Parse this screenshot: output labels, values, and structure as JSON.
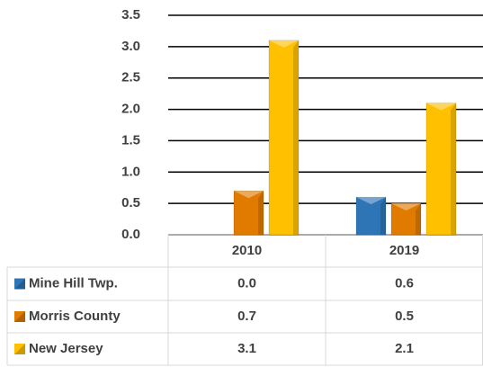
{
  "chart_data": {
    "type": "bar",
    "categories": [
      "2010",
      "2019"
    ],
    "series": [
      {
        "name": "Mine Hill Twp.",
        "color": "#2e75b6",
        "values": [
          0.0,
          0.6
        ],
        "value_labels": [
          "0.0",
          "0.6"
        ]
      },
      {
        "name": "Morris County",
        "color": "#e07b00",
        "values": [
          0.7,
          0.5
        ],
        "value_labels": [
          "0.7",
          "0.5"
        ]
      },
      {
        "name": "New Jersey",
        "color": "#ffc000",
        "values": [
          3.1,
          2.1
        ],
        "value_labels": [
          "3.1",
          "2.1"
        ]
      }
    ],
    "ylim": [
      0,
      3.5
    ],
    "yticks": [
      {
        "value": 0,
        "label": "0.0"
      },
      0.5,
      {
        "value": 1,
        "label": "1.0"
      },
      1.5,
      {
        "value": 2,
        "label": "2.0"
      },
      2.5,
      {
        "value": 3,
        "label": "3.0"
      },
      3.5
    ],
    "grid": true
  }
}
